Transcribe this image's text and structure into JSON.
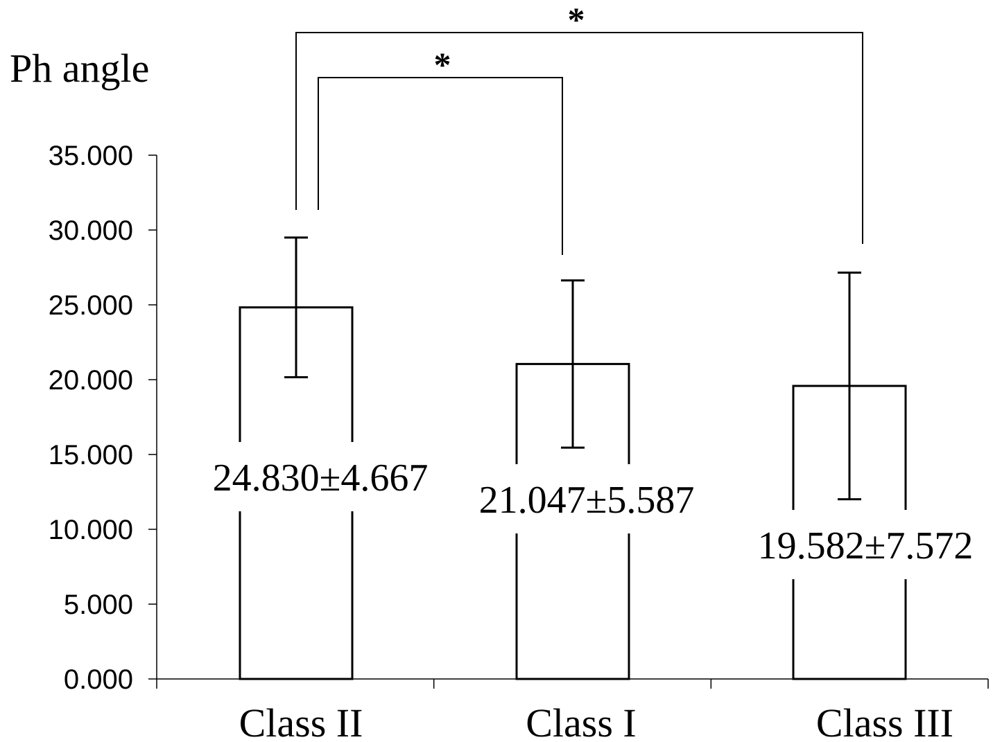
{
  "chart_data": {
    "type": "bar",
    "ylabel": "Ph angle",
    "xlabel": "",
    "ylim": [
      0,
      35
    ],
    "yticks": [
      0,
      5,
      10,
      15,
      20,
      25,
      30,
      35
    ],
    "ytick_labels": [
      "0.000",
      "5.000",
      "10.000",
      "15.000",
      "20.000",
      "25.000",
      "30.000",
      "35.000"
    ],
    "categories": [
      "Class II",
      "Class I",
      "Class III"
    ],
    "values": [
      24.83,
      21.047,
      19.582
    ],
    "errors": [
      4.667,
      5.587,
      7.572
    ],
    "value_labels": [
      "24.830±4.667",
      "21.047±5.587",
      "19.582±7.572"
    ],
    "grid": false,
    "legend": "none",
    "bar_fill": "#ffffff",
    "bar_stroke": "#000000",
    "significance": [
      {
        "from": "Class II",
        "to": "Class I",
        "label": "*"
      },
      {
        "from": "Class II",
        "to": "Class III",
        "label": "*"
      }
    ]
  }
}
